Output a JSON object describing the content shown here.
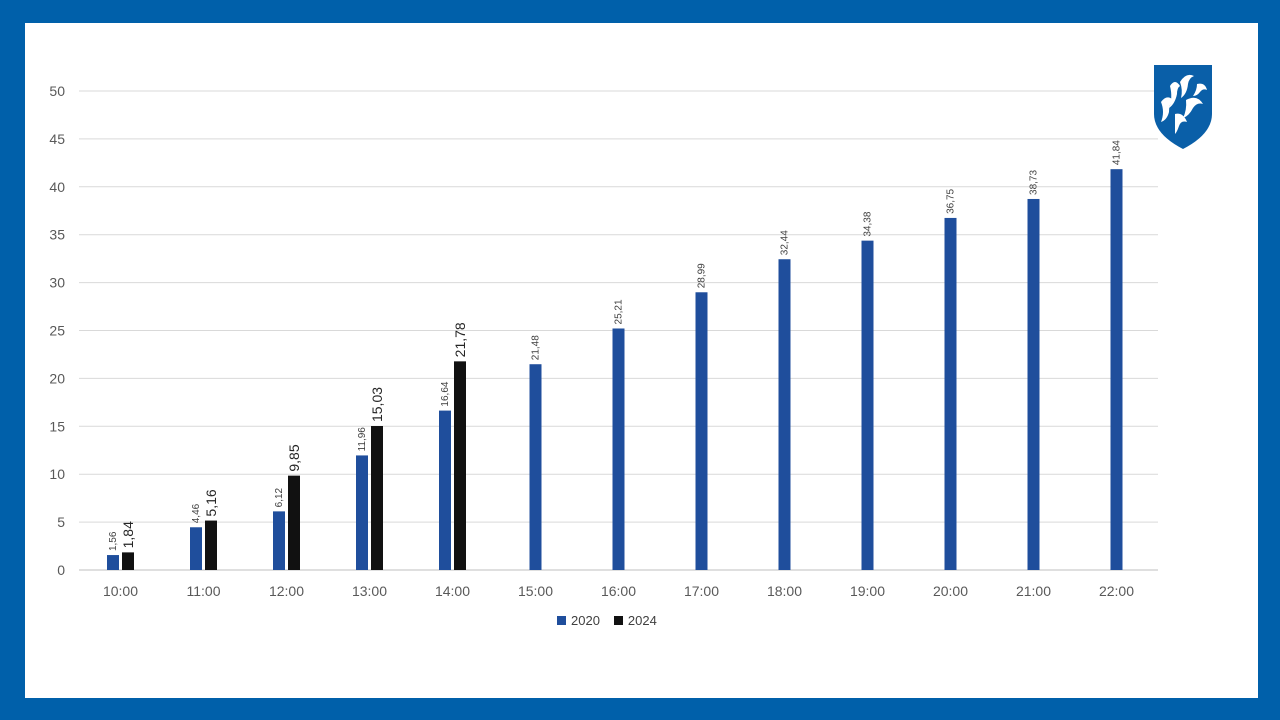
{
  "chart_data": {
    "type": "bar",
    "categories": [
      "10:00",
      "11:00",
      "12:00",
      "13:00",
      "14:00",
      "15:00",
      "16:00",
      "17:00",
      "18:00",
      "19:00",
      "20:00",
      "21:00",
      "22:00"
    ],
    "series": [
      {
        "name": "2020",
        "color": "#1f4e9c",
        "values": [
          1.56,
          4.46,
          6.12,
          11.96,
          16.64,
          21.48,
          25.21,
          28.99,
          32.44,
          34.38,
          36.75,
          38.73,
          41.84
        ],
        "labels": [
          "1,56",
          "4,46",
          "6,12",
          "11,96",
          "16,64",
          "21,48",
          "25,21",
          "28,99",
          "32,44",
          "34,38",
          "36,75",
          "38,73",
          "41,84"
        ]
      },
      {
        "name": "2024",
        "color": "#111111",
        "values": [
          1.84,
          5.16,
          9.85,
          15.03,
          21.78,
          null,
          null,
          null,
          null,
          null,
          null,
          null,
          null
        ],
        "labels": [
          "1,84",
          "5,16",
          "9,85",
          "15,03",
          "21,78",
          "",
          "",
          "",
          "",
          "",
          "",
          "",
          ""
        ]
      }
    ],
    "y_ticks": [
      "0",
      "5",
      "10",
      "15",
      "20",
      "25",
      "30",
      "35",
      "40",
      "45",
      "50"
    ],
    "ylim": [
      0,
      50
    ],
    "grid": true,
    "legend_position": "bottom"
  },
  "colors": {
    "frame": "#0060aa",
    "logo": "#0a5fa8"
  },
  "logo": {
    "icon": "crest-bird-icon"
  }
}
